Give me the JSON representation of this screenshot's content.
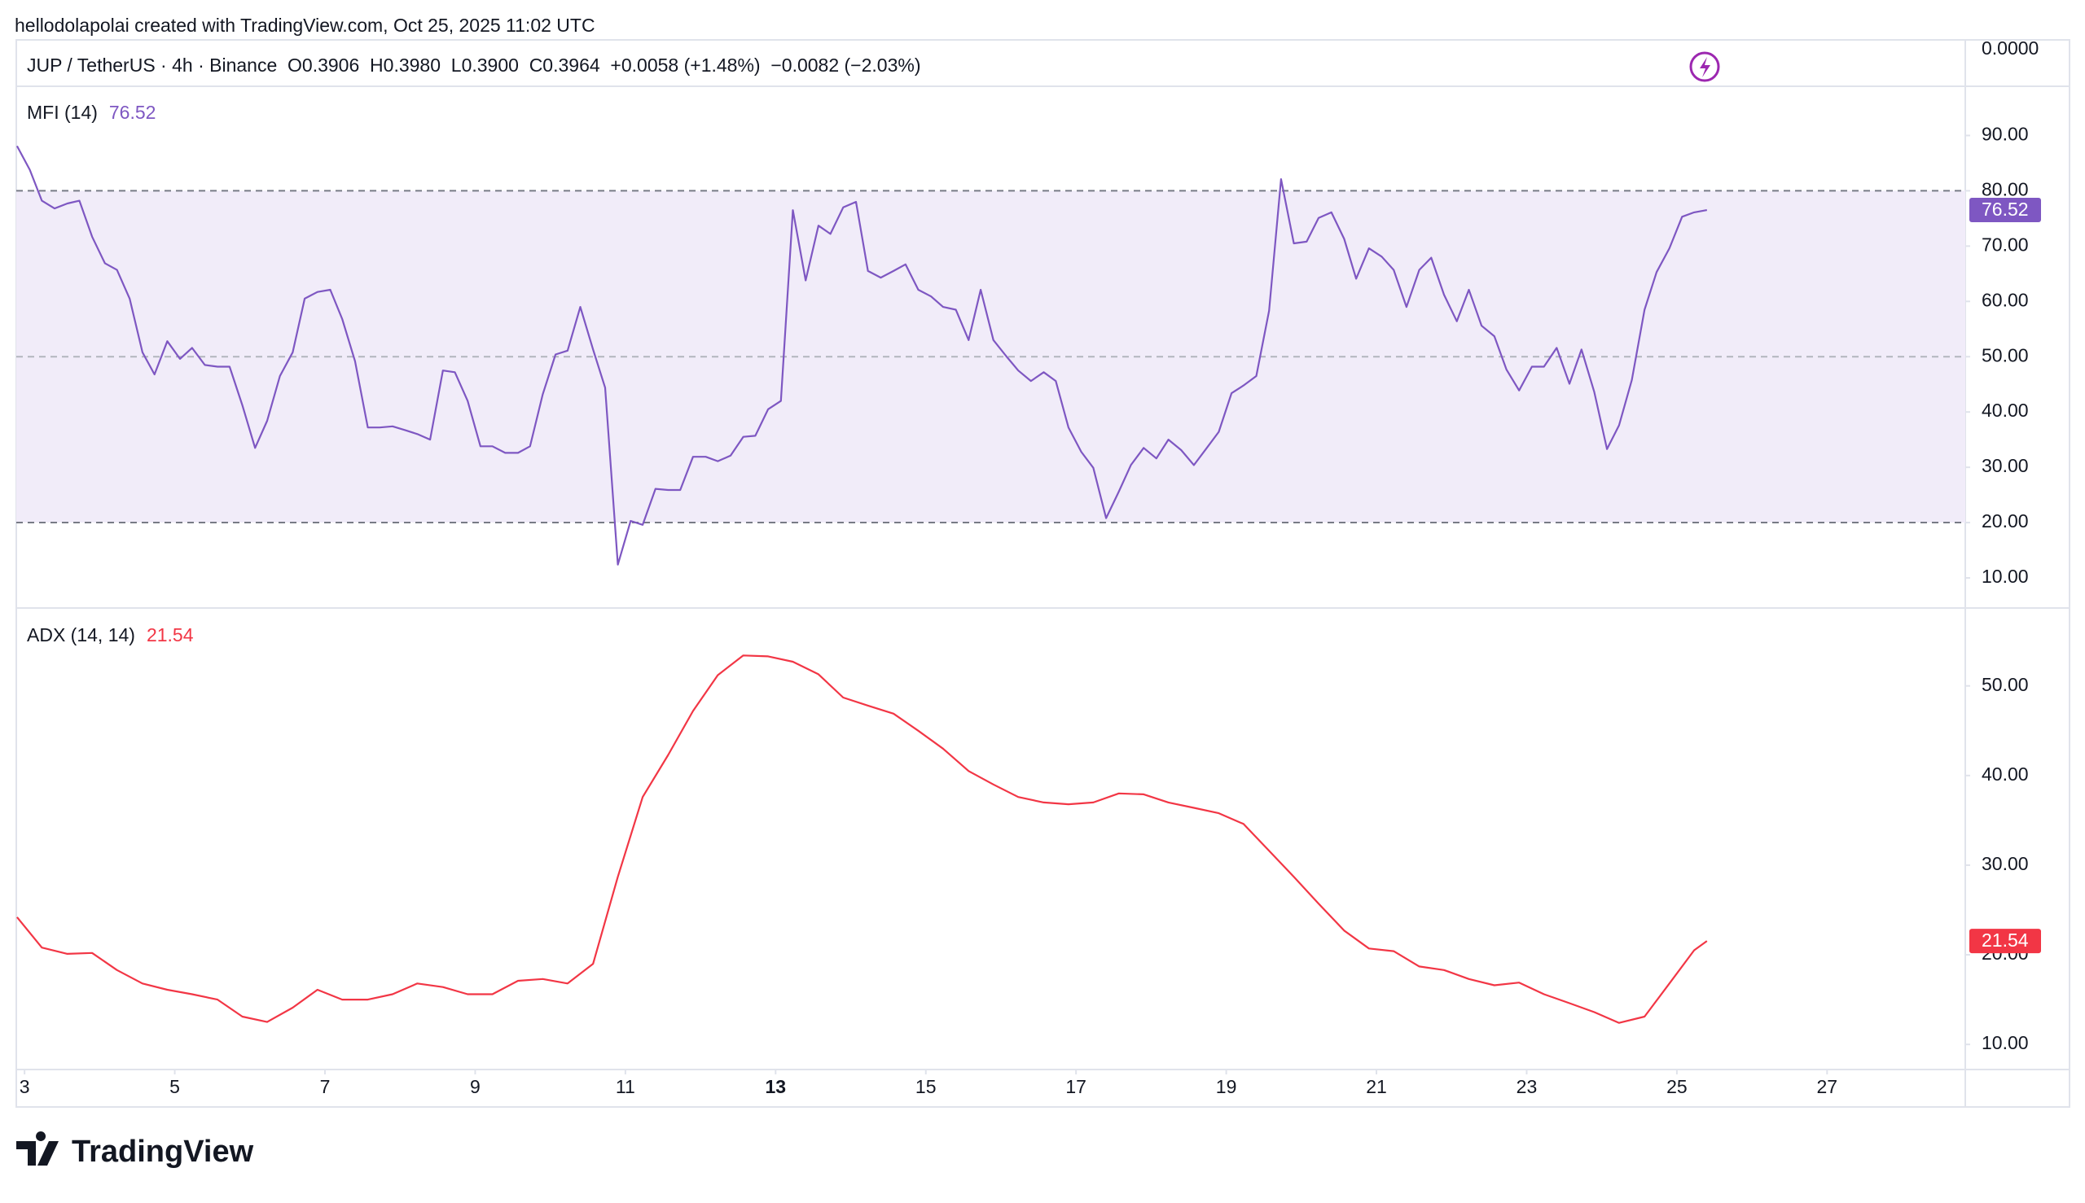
{
  "header": {
    "attribution": "hellodolapolai created with TradingView.com, Oct 25, 2025 11:02 UTC",
    "symbol_line": "JUP / TetherUS · 4h · Binance  O0.3906  H0.3980  L0.3900  C0.3964  +0.0058 (+1.48%)  −0.0082 (−2.03%)",
    "price_axis": "0.0000"
  },
  "logo": "TradingView",
  "chart_data": [
    {
      "type": "line",
      "title": "MFI (14)",
      "color": "#7e57c2",
      "band_color": "#f1ecf9",
      "levels": [
        20,
        50,
        80
      ],
      "xlim": [
        2.89,
        28.84
      ],
      "ylim": [
        4.7,
        98.9
      ],
      "yticks": [
        {
          "value": 10,
          "label": "10.00"
        },
        {
          "value": 20,
          "label": "20.00"
        },
        {
          "value": 30,
          "label": "30.00"
        },
        {
          "value": 40,
          "label": "40.00"
        },
        {
          "value": 50,
          "label": "50.00"
        },
        {
          "value": 60,
          "label": "60.00"
        },
        {
          "value": 70,
          "label": "70.00"
        },
        {
          "value": 80,
          "label": "80.00"
        },
        {
          "value": 90,
          "label": "90.00"
        }
      ],
      "x": [
        2.9,
        3.07,
        3.23,
        3.4,
        3.57,
        3.73,
        3.9,
        4.07,
        4.23,
        4.4,
        4.57,
        4.73,
        4.9,
        5.07,
        5.23,
        5.4,
        5.57,
        5.73,
        5.9,
        6.07,
        6.23,
        6.4,
        6.57,
        6.73,
        6.9,
        7.07,
        7.23,
        7.4,
        7.57,
        7.73,
        7.9,
        8.07,
        8.23,
        8.4,
        8.57,
        8.73,
        8.9,
        9.07,
        9.23,
        9.4,
        9.57,
        9.73,
        9.9,
        10.07,
        10.23,
        10.4,
        10.57,
        10.73,
        10.9,
        11.07,
        11.23,
        11.4,
        11.57,
        11.73,
        11.9,
        12.07,
        12.23,
        12.4,
        12.57,
        12.73,
        12.9,
        13.07,
        13.23,
        13.4,
        13.57,
        13.73,
        13.9,
        14.07,
        14.23,
        14.4,
        14.57,
        14.73,
        14.9,
        15.07,
        15.23,
        15.4,
        15.57,
        15.73,
        15.9,
        16.07,
        16.23,
        16.4,
        16.57,
        16.73,
        16.9,
        17.07,
        17.23,
        17.4,
        17.57,
        17.73,
        17.9,
        18.07,
        18.23,
        18.4,
        18.57,
        18.73,
        18.9,
        19.07,
        19.23,
        19.4,
        19.57,
        19.73,
        19.9,
        20.07,
        20.23,
        20.4,
        20.57,
        20.73,
        20.9,
        21.07,
        21.23,
        21.4,
        21.57,
        21.73,
        21.9,
        22.07,
        22.23,
        22.4,
        22.57,
        22.73,
        22.9,
        23.07,
        23.23,
        23.4,
        23.57,
        23.73,
        23.9,
        24.07,
        24.23,
        24.4,
        24.57,
        24.73,
        24.9,
        25.07,
        25.23,
        25.4
      ],
      "values": [
        88.1,
        83.8,
        78.2,
        76.8,
        77.7,
        78.2,
        71.7,
        66.9,
        65.7,
        60.5,
        50.8,
        46.8,
        52.8,
        49.6,
        51.6,
        48.5,
        48.2,
        48.2,
        41.2,
        33.5,
        38.4,
        46.5,
        50.8,
        60.5,
        61.7,
        62.1,
        56.8,
        49.2,
        37.2,
        37.2,
        37.4,
        36.7,
        36.0,
        35.0,
        47.5,
        47.2,
        42.0,
        33.8,
        33.8,
        32.6,
        32.6,
        33.8,
        43.2,
        50.4,
        51.1,
        59.0,
        51.3,
        44.4,
        12.4,
        20.3,
        19.6,
        26.1,
        25.9,
        25.9,
        31.9,
        31.9,
        31.1,
        32.1,
        35.5,
        35.7,
        40.5,
        42.0,
        76.5,
        63.8,
        73.7,
        72.2,
        77.0,
        78.0,
        65.5,
        64.3,
        65.5,
        66.7,
        62.1,
        60.9,
        59.0,
        58.5,
        53.0,
        62.1,
        53.0,
        50.1,
        47.5,
        45.6,
        47.2,
        45.6,
        37.2,
        32.8,
        29.9,
        20.8,
        25.6,
        30.4,
        33.5,
        31.6,
        35.0,
        33.1,
        30.4,
        33.3,
        36.4,
        43.4,
        44.8,
        46.5,
        58.3,
        82.1,
        70.5,
        70.8,
        75.1,
        76.1,
        71.3,
        64.1,
        69.6,
        68.1,
        65.7,
        59.0,
        65.7,
        67.9,
        61.2,
        56.4,
        62.1,
        55.6,
        53.7,
        47.7,
        43.9,
        48.2,
        48.2,
        51.6,
        45.1,
        51.3,
        43.6,
        33.3,
        37.6,
        45.8,
        58.5,
        65.3,
        69.6,
        75.3,
        76.1,
        76.52
      ]
    },
    {
      "type": "line",
      "title": "ADX (14, 14)",
      "color": "#f23645",
      "xlim": [
        2.89,
        28.84
      ],
      "ylim": [
        7.2,
        58.6
      ],
      "yticks": [
        {
          "value": 10,
          "label": "10.00"
        },
        {
          "value": 20,
          "label": "20.00"
        },
        {
          "value": 30,
          "label": "30.00"
        },
        {
          "value": 40,
          "label": "40.00"
        },
        {
          "value": 50,
          "label": "50.00"
        }
      ],
      "xticks": [
        3,
        5,
        7,
        9,
        11,
        13,
        15,
        17,
        19,
        21,
        23,
        25,
        27
      ],
      "emphasized_xtick": 13,
      "x": [
        2.9,
        3.23,
        3.57,
        3.9,
        4.23,
        4.57,
        4.9,
        5.23,
        5.57,
        5.9,
        6.23,
        6.57,
        6.9,
        7.23,
        7.57,
        7.9,
        8.23,
        8.57,
        8.9,
        9.23,
        9.57,
        9.9,
        10.23,
        10.57,
        10.9,
        11.23,
        11.57,
        11.9,
        12.23,
        12.57,
        12.9,
        13.23,
        13.57,
        13.9,
        14.23,
        14.57,
        14.9,
        15.23,
        15.57,
        15.9,
        16.23,
        16.57,
        16.9,
        17.23,
        17.57,
        17.9,
        18.23,
        18.57,
        18.9,
        19.23,
        19.57,
        19.9,
        20.23,
        20.57,
        20.9,
        21.23,
        21.57,
        21.9,
        22.23,
        22.57,
        22.9,
        23.23,
        23.57,
        23.9,
        24.23,
        24.57,
        24.9,
        25.23,
        25.4
      ],
      "values": [
        24.2,
        20.8,
        20.1,
        20.2,
        18.3,
        16.8,
        16.1,
        15.6,
        15.0,
        13.1,
        12.5,
        14.1,
        16.1,
        15.0,
        15.0,
        15.6,
        16.8,
        16.4,
        15.6,
        15.6,
        17.1,
        17.3,
        16.8,
        19.0,
        28.7,
        37.6,
        42.3,
        47.2,
        51.2,
        53.4,
        53.3,
        52.7,
        51.3,
        48.7,
        47.8,
        46.9,
        45.0,
        43.0,
        40.5,
        39.0,
        37.6,
        37.0,
        36.8,
        37.0,
        38.0,
        37.9,
        37.0,
        36.4,
        35.8,
        34.6,
        31.6,
        28.7,
        25.7,
        22.7,
        20.7,
        20.4,
        18.7,
        18.3,
        17.3,
        16.6,
        16.9,
        15.6,
        14.6,
        13.6,
        12.4,
        13.1,
        16.8,
        20.5,
        21.54
      ]
    }
  ]
}
